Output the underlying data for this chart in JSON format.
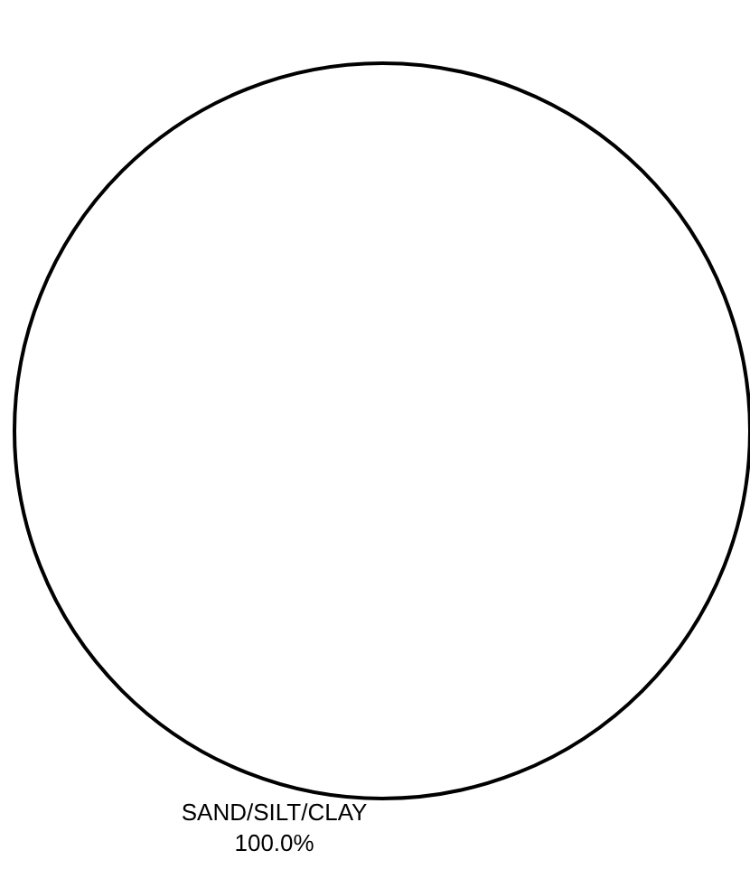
{
  "chart_data": {
    "type": "pie",
    "categories": [
      "SAND/SILT/CLAY"
    ],
    "values": [
      100
    ],
    "value_labels": [
      "100.0%"
    ],
    "colors": [
      "#ffffff"
    ],
    "legend": false
  }
}
